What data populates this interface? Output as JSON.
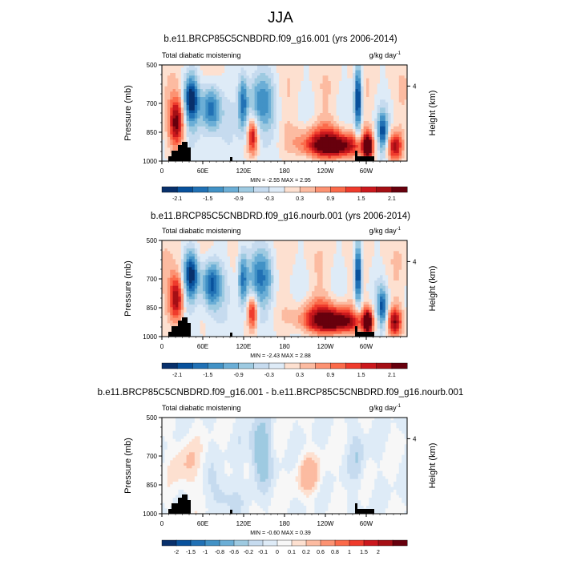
{
  "page": {
    "title": "JJA"
  },
  "colors": {
    "palette_main": [
      "#08306b",
      "#08519c",
      "#2171b5",
      "#4292c6",
      "#6baed6",
      "#9ecae1",
      "#c6dbef",
      "#deebf7",
      "#fde0d0",
      "#fcbba1",
      "#fc9272",
      "#fb6a4a",
      "#ef3b2c",
      "#cb181d",
      "#a50f15",
      "#67000d"
    ],
    "palette_diff": [
      "#08306b",
      "#08519c",
      "#2171b5",
      "#4292c6",
      "#6baed6",
      "#9ecae1",
      "#c6dbef",
      "#deebf7",
      "#f7f7f7",
      "#fde0d0",
      "#fcbba1",
      "#fc9272",
      "#fb6a4a",
      "#ef3b2c",
      "#cb181d",
      "#a50f15",
      "#67000d"
    ],
    "topography": "#000000"
  },
  "chart_data": [
    {
      "type": "heatmap",
      "title": "b.e11.BRCP85C5CNBDRD.f09_g16.001 (yrs 2006-2014)",
      "left_label": "Total diabatic moistening",
      "units_label": "g/kg day",
      "units_exponent": "-1",
      "ylabel": "Pressure (mb)",
      "ylabel_right": "Height (km)",
      "yticks": [
        "500",
        "700",
        "850",
        "1000"
      ],
      "yticks_right": [
        "4"
      ],
      "xticks": [
        "0",
        "60E",
        "120E",
        "180",
        "120W",
        "60W"
      ],
      "min_max_text": "MIN =  -2.55  MAX =  2.95",
      "colorbar_labels": [
        "-2.1",
        "-1.5",
        "-0.9",
        "-0.3",
        "0.3",
        "0.9",
        "1.5",
        "2.1"
      ],
      "colorbar_levels": [
        -2.1,
        -1.8,
        -1.5,
        -1.2,
        -0.9,
        -0.6,
        -0.3,
        0,
        0.3,
        0.6,
        0.9,
        1.2,
        1.5,
        1.8,
        2.1
      ],
      "min": -2.55,
      "max": 2.95
    },
    {
      "type": "heatmap",
      "title": "b.e11.BRCP85C5CNBDRD.f09_g16.nourb.001 (yrs 2006-2014)",
      "left_label": "Total diabatic moistening",
      "units_label": "g/kg day",
      "units_exponent": "-1",
      "ylabel": "Pressure (mb)",
      "ylabel_right": "Height (km)",
      "yticks": [
        "500",
        "700",
        "850",
        "1000"
      ],
      "yticks_right": [
        "4"
      ],
      "xticks": [
        "0",
        "60E",
        "120E",
        "180",
        "120W",
        "60W"
      ],
      "min_max_text": "MIN =  -2.43  MAX =  2.88",
      "colorbar_labels": [
        "-2.1",
        "-1.5",
        "-0.9",
        "-0.3",
        "0.3",
        "0.9",
        "1.5",
        "2.1"
      ],
      "colorbar_levels": [
        -2.1,
        -1.8,
        -1.5,
        -1.2,
        -0.9,
        -0.6,
        -0.3,
        0,
        0.3,
        0.6,
        0.9,
        1.2,
        1.5,
        1.8,
        2.1
      ],
      "min": -2.43,
      "max": 2.88
    },
    {
      "type": "heatmap",
      "title": "b.e11.BRCP85C5CNBDRD.f09_g16.001 - b.e11.BRCP85C5CNBDRD.f09_g16.nourb.001",
      "left_label": "Total diabatic moistening",
      "units_label": "g/kg day",
      "units_exponent": "-1",
      "ylabel": "Pressure (mb)",
      "ylabel_right": "Height (km)",
      "yticks": [
        "500",
        "700",
        "850",
        "1000"
      ],
      "yticks_right": [
        "4"
      ],
      "xticks": [
        "0",
        "60E",
        "120E",
        "180",
        "120W",
        "60W"
      ],
      "min_max_text": "MIN =  -0.60  MAX =  0.39",
      "colorbar_labels": [
        "-2",
        "-1.5",
        "-1",
        "-0.8",
        "-0.6",
        "-0.2",
        "-0.1",
        "0",
        "0.1",
        "0.2",
        "0.6",
        "0.8",
        "1",
        "1.5",
        "2"
      ],
      "colorbar_levels": [
        -2,
        -1.5,
        -1,
        -0.8,
        -0.6,
        -0.2,
        -0.1,
        0,
        0.1,
        0.2,
        0.6,
        0.8,
        1,
        1.5,
        2
      ],
      "min": -0.6,
      "max": 0.39
    }
  ]
}
